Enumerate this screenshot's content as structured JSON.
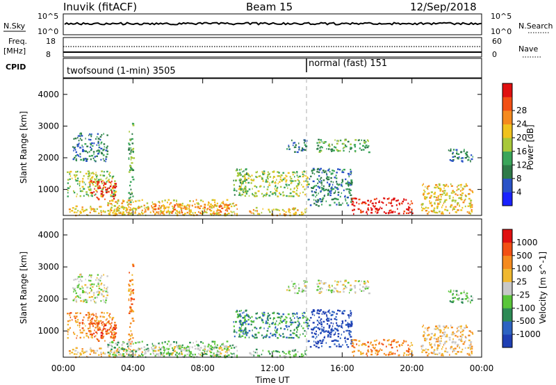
{
  "header": {
    "station": "Inuvik (fitACF)",
    "beam": "Beam 15",
    "date": "12/Sep/2018"
  },
  "panels": {
    "nsky": {
      "label": "N.Sky",
      "tick_top": "10^5",
      "tick_bottom": "10^0",
      "right_tick_top": "10^5",
      "right_tick_bottom": "10^0",
      "right_label": "N.Search"
    },
    "freq": {
      "label_line1": "Freq.",
      "label_line2": "[MHz]",
      "tick_top": "18",
      "tick_bottom": "8",
      "right_tick_top": "60",
      "right_tick_bottom": "0",
      "right_label": "Nave"
    },
    "cpid": {
      "label": "CPID",
      "modes": [
        {
          "label": "twofsound (1-min) 3505",
          "start_hour": 0
        },
        {
          "label": "normal (fast) 151",
          "start_hour": 14
        }
      ]
    }
  },
  "chart_data": [
    {
      "type": "heatmap",
      "ylabel": "Slant Range [km]",
      "xlabel": "Time UT",
      "xlim": [
        0,
        24
      ],
      "ylim": [
        180,
        4500
      ],
      "x_ticks": [
        "00:00",
        "04:00",
        "08:00",
        "12:00",
        "16:00",
        "20:00",
        "00:00"
      ],
      "y_ticks": [
        1000,
        2000,
        3000,
        4000
      ],
      "colorbar": {
        "label": "Power [dB]",
        "ticks": [
          "4",
          "8",
          "12",
          "16",
          "20",
          "24",
          "28"
        ],
        "colors": [
          "#1a22ff",
          "#2952c7",
          "#2e7a48",
          "#3aa55a",
          "#a8c83a",
          "#f0c21e",
          "#f58a1e",
          "#f24f14",
          "#e01010"
        ]
      }
    },
    {
      "type": "heatmap",
      "ylabel": "Slant Range [km]",
      "xlabel": "Time UT",
      "xlim": [
        0,
        24
      ],
      "ylim": [
        180,
        4500
      ],
      "x_ticks": [
        "00:00",
        "04:00",
        "08:00",
        "12:00",
        "16:00",
        "20:00",
        "00:00"
      ],
      "y_ticks": [
        1000,
        2000,
        3000,
        4000
      ],
      "colorbar": {
        "label": "Velocity [m s^-1]",
        "ticks": [
          "1000",
          "500",
          "100",
          "25",
          "-25",
          "-100",
          "-500",
          "-1000"
        ],
        "colors": [
          "#1f3fb3",
          "#2d63c2",
          "#2d8a55",
          "#5ac63a",
          "#c8c8c8",
          "#f0b830",
          "#f58a1e",
          "#f25014",
          "#e01010"
        ]
      }
    }
  ],
  "echo_regions": [
    {
      "t0": 0.2,
      "t1": 3.0,
      "r0": 800,
      "r1": 1600,
      "pw": 4,
      "vel": 6
    },
    {
      "t0": 1.5,
      "t1": 3.0,
      "r0": 700,
      "r1": 1300,
      "pw": 8,
      "vel": 7
    },
    {
      "t0": 0.3,
      "t1": 4.5,
      "r0": 200,
      "r1": 500,
      "pw": 5,
      "vel": 5
    },
    {
      "t0": 2.5,
      "t1": 10.0,
      "r0": 200,
      "r1": 700,
      "pw": 5,
      "vel": 3
    },
    {
      "t0": 5.0,
      "t1": 9.5,
      "r0": 250,
      "r1": 550,
      "pw": 6,
      "vel": 4
    },
    {
      "t0": 0.5,
      "t1": 2.5,
      "r0": 1900,
      "r1": 2800,
      "pw": 2,
      "vel": 4
    },
    {
      "t0": 3.7,
      "t1": 4.0,
      "r0": 600,
      "r1": 3200,
      "pw": 3,
      "vel": 6
    },
    {
      "t0": 9.7,
      "t1": 10.5,
      "r0": 800,
      "r1": 1700,
      "pw": 3,
      "vel": 2
    },
    {
      "t0": 10.0,
      "t1": 14.0,
      "r0": 800,
      "r1": 1600,
      "pw": 4,
      "vel": 2
    },
    {
      "t0": 10.5,
      "t1": 14.0,
      "r0": 200,
      "r1": 450,
      "pw": 5,
      "vel": 3
    },
    {
      "t0": 12.8,
      "t1": 14.0,
      "r0": 2200,
      "r1": 2600,
      "pw": 2,
      "vel": 4
    },
    {
      "t0": 14.0,
      "t1": 16.5,
      "r0": 500,
      "r1": 1700,
      "pw": 2,
      "vel": 0
    },
    {
      "t0": 14.5,
      "t1": 17.5,
      "r0": 2200,
      "r1": 2600,
      "pw": 3,
      "vel": 4
    },
    {
      "t0": 16.5,
      "t1": 20.0,
      "r0": 250,
      "r1": 750,
      "pw": 8,
      "vel": 6
    },
    {
      "t0": 20.5,
      "t1": 23.5,
      "r0": 250,
      "r1": 1200,
      "pw": 5,
      "vel": 5
    },
    {
      "t0": 22.0,
      "t1": 23.5,
      "r0": 1900,
      "r1": 2300,
      "pw": 2,
      "vel": 3
    }
  ]
}
